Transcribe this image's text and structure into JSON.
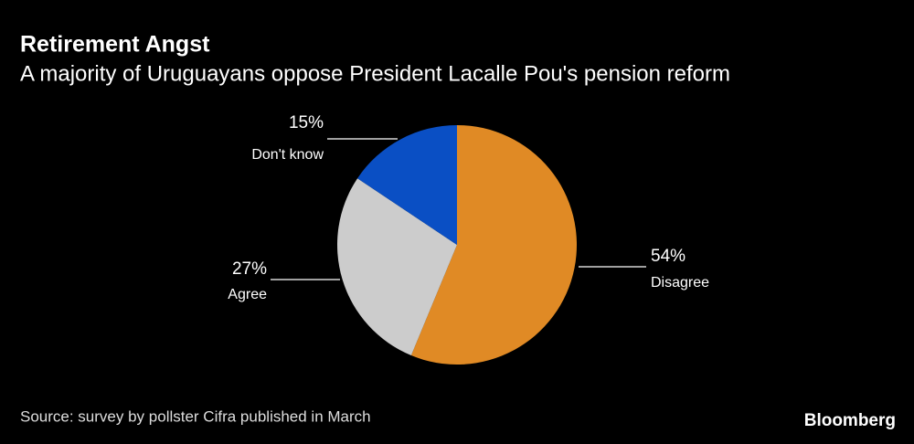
{
  "chart_data": {
    "type": "pie",
    "title": "Retirement Angst",
    "subtitle": "A majority of Uruguayans oppose President Lacalle Pou's pension reform",
    "categories": [
      "Disagree",
      "Agree",
      "Don't know"
    ],
    "values": [
      54,
      27,
      15
    ],
    "value_labels": [
      "54%",
      "27%",
      "15%"
    ],
    "colors": [
      "#e08a25",
      "#cccccc",
      "#0a4fc4"
    ],
    "source": "Source: survey by pollster Cifra published in March",
    "branding": "Bloomberg"
  }
}
